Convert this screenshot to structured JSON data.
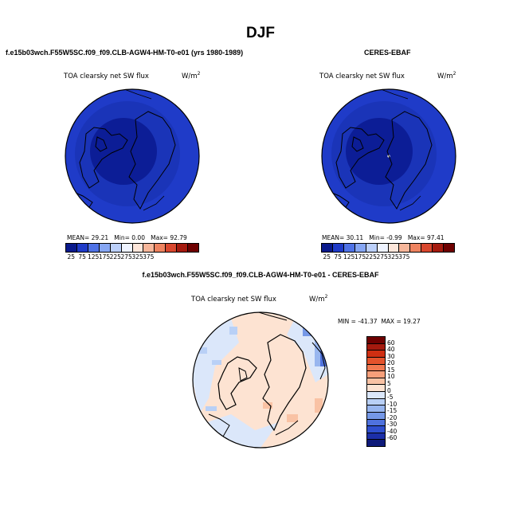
{
  "season": "DJF",
  "panels": {
    "model": {
      "title": "f.e15b03wch.F55W5SC.f09_f09.CLB-AGW4-HM-T0-e01 (yrs 1980-1989)",
      "field_label": "TOA clearsky net SW flux",
      "units_base": "W/m",
      "units_exp": "2",
      "mean_label": "MEAN=",
      "mean": "29.21",
      "min_label": "Min=",
      "min": "0.00",
      "max_label": "Max=",
      "max": "92.79"
    },
    "obs": {
      "title": "CERES-EBAF",
      "field_label": "TOA clearsky net SW flux",
      "units_base": "W/m",
      "units_exp": "2",
      "mean_label": "MEAN=",
      "mean": "30.11",
      "min_label": "Min=",
      "min": "-0.99",
      "max_label": "Max=",
      "max": "97.41"
    },
    "diff": {
      "title": "f.e15b03wch.F55W5SC.f09_f09.CLB-AGW4-HM-T0-e01 - CERES-EBAF",
      "field_label": "TOA clearsky net SW flux",
      "units_base": "W/m",
      "units_exp": "2",
      "min_label": "MIN =",
      "min": "-41.37",
      "max_label": "MAX =",
      "max": "19.27"
    }
  },
  "abs_colorbar": {
    "colors": [
      "#0a1a8c",
      "#1f3bc8",
      "#4f72e6",
      "#86a6f3",
      "#bcd0fa",
      "#eef3ff",
      "#fde6da",
      "#f6b69a",
      "#ee8360",
      "#d9472e",
      "#a51a0e",
      "#6e0000"
    ],
    "ticks": [
      "25",
      "75",
      "125",
      "175",
      "225",
      "275",
      "325",
      "375"
    ]
  },
  "diff_colorbar": {
    "colors": [
      "#6e0000",
      "#a51a0e",
      "#cf2f12",
      "#e4532c",
      "#f17950",
      "#f69f7a",
      "#f9c2a4",
      "#fde3d2",
      "#dbe7fa",
      "#b9d0f6",
      "#98b6ef",
      "#7598e7",
      "#4f72de",
      "#2f4fce",
      "#1c2fa8",
      "#0e1a7a"
    ],
    "ticks": [
      "60",
      "40",
      "30",
      "20",
      "15",
      "10",
      "5",
      "0",
      "-5",
      "-10",
      "-15",
      "-20",
      "-30",
      "-40",
      "-60"
    ]
  },
  "chart_data": [
    {
      "type": "heatmap",
      "projection": "north polar stereographic",
      "title": "f.e15b03wch.F55W5SC.f09_f09.CLB-AGW4-HM-T0-e01 (yrs 1980-1989)",
      "subtitle": "TOA clearsky net SW flux (W/m2), DJF",
      "levels": [
        25,
        75,
        125,
        175,
        225,
        275,
        325,
        375
      ],
      "mean": 29.21,
      "min": 0.0,
      "max": 92.79,
      "pattern": "near 0 over Arctic interior, rising to ~75-90 at outer latitudes"
    },
    {
      "type": "heatmap",
      "projection": "north polar stereographic",
      "title": "CERES-EBAF",
      "subtitle": "TOA clearsky net SW flux (W/m2), DJF",
      "levels": [
        25,
        75,
        125,
        175,
        225,
        275,
        325,
        375
      ],
      "mean": 30.11,
      "min": -0.99,
      "max": 97.41
    },
    {
      "type": "heatmap",
      "projection": "north polar stereographic",
      "title": "f.e15b03wch.F55W5SC.f09_f09.CLB-AGW4-HM-T0-e01 - CERES-EBAF",
      "subtitle": "TOA clearsky net SW flux (W/m2), difference",
      "levels": [
        -60,
        -40,
        -30,
        -20,
        -15,
        -10,
        -5,
        0,
        5,
        10,
        15,
        20,
        30,
        40,
        60
      ],
      "min": -41.37,
      "max": 19.27,
      "pattern": "small positive (0-5) over Arctic interior, negative (-5 to -40) patches near outer edges"
    }
  ]
}
